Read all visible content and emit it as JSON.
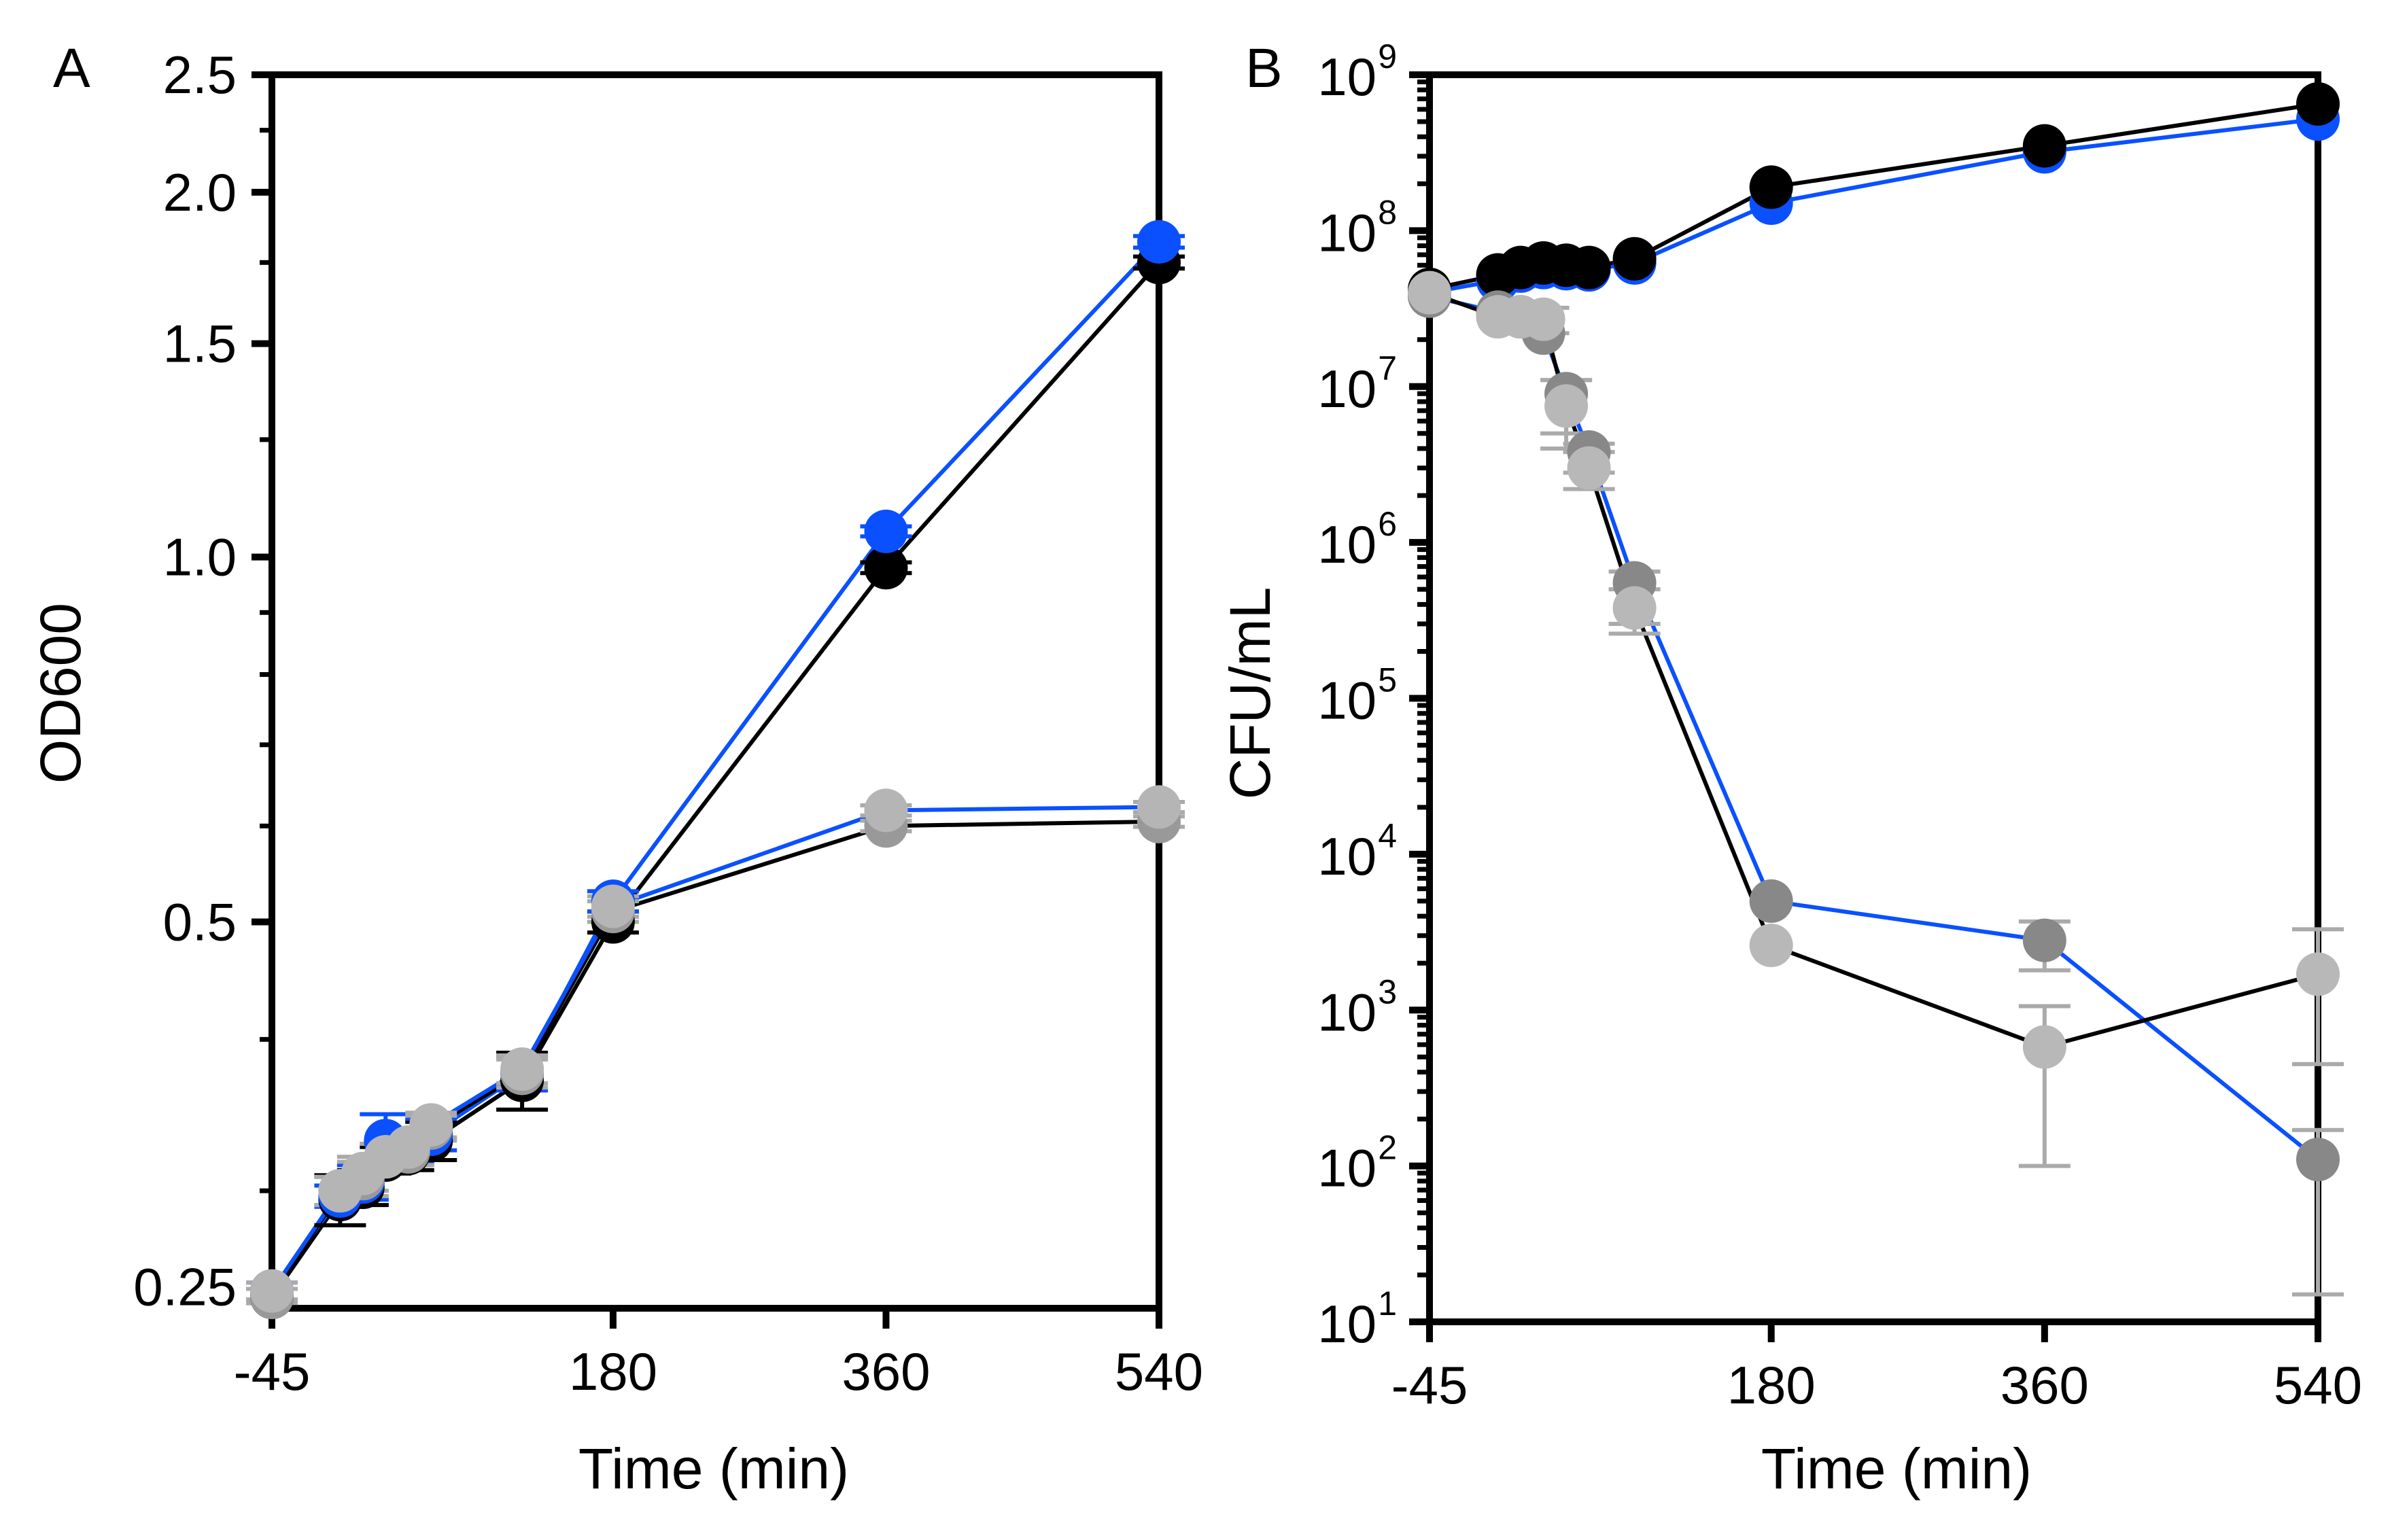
{
  "chart_data": [
    {
      "panel": "A",
      "type": "line",
      "xlabel": "Time (min)",
      "ylabel": "OD600",
      "xlim": [
        -45,
        540
      ],
      "ylim": [
        0.24,
        2.5
      ],
      "yscale": "log",
      "x_ticks": [
        -45,
        180,
        360,
        540
      ],
      "y_ticks": [
        {
          "value": 0.25,
          "label": "0.25"
        },
        {
          "value": 0.5,
          "label": "0.5"
        },
        {
          "value": 1.0,
          "label": "1.0"
        },
        {
          "value": 1.5,
          "label": "1.5"
        },
        {
          "value": 2.0,
          "label": "2.0"
        },
        {
          "value": 2.5,
          "label": "2.5"
        }
      ],
      "y_minor_ticks": [
        0.3,
        0.4,
        0.6,
        0.7,
        0.8,
        0.9,
        1.25,
        1.75,
        2.25
      ],
      "grid": false,
      "series": [
        {
          "color": "#000000",
          "line": "#000000",
          "x": [
            -45,
            0,
            15,
            30,
            45,
            60,
            120,
            180,
            360,
            540
          ],
          "y": [
            0.245,
            0.295,
            0.302,
            0.318,
            0.322,
            0.33,
            0.37,
            0.5,
            0.98,
            1.75
          ],
          "err": [
            0.004,
            0.014,
            0.01,
            0.008,
            0.01,
            0.012,
            0.02,
            0.01,
            0.01,
            0.02
          ]
        },
        {
          "color": "#0a50ff",
          "line": "#0a50ff",
          "x": [
            -45,
            0,
            15,
            30,
            45,
            60,
            120,
            180,
            360,
            540
          ],
          "y": [
            0.248,
            0.297,
            0.305,
            0.33,
            0.325,
            0.334,
            0.375,
            0.52,
            1.05,
            1.82
          ],
          "err": [
            0.004,
            0.006,
            0.01,
            0.017,
            0.008,
            0.01,
            0.012,
            0.01,
            0.01,
            0.02
          ]
        },
        {
          "color": "#999999",
          "line": "#000000",
          "x": [
            -45,
            0,
            15,
            30,
            45,
            60,
            120,
            180,
            360,
            540
          ],
          "y": [
            0.245,
            0.3,
            0.307,
            0.32,
            0.323,
            0.338,
            0.375,
            0.51,
            0.6,
            0.605
          ],
          "err": [
            0.004,
            0.008,
            0.01,
            0.008,
            0.008,
            0.008,
            0.01,
            0.01,
            0.006,
            0.006
          ]
        },
        {
          "color": "#b5b5b5",
          "line": "#0a50ff",
          "x": [
            -45,
            0,
            15,
            30,
            45,
            60,
            120,
            180,
            360,
            540
          ],
          "y": [
            0.248,
            0.3,
            0.31,
            0.32,
            0.326,
            0.34,
            0.378,
            0.515,
            0.618,
            0.622
          ],
          "err": [
            0.004,
            0.008,
            0.01,
            0.008,
            0.008,
            0.008,
            0.01,
            0.01,
            0.006,
            0.006
          ]
        }
      ]
    },
    {
      "panel": "B",
      "type": "line",
      "xlabel": "Time (min)",
      "ylabel": "CFU/mL",
      "xlim": [
        -45,
        540
      ],
      "ylim": [
        10,
        1000000000
      ],
      "yscale": "log",
      "x_ticks": [
        -45,
        180,
        360,
        540
      ],
      "y_ticks": [
        {
          "value": 10,
          "base": "10",
          "exp": "1"
        },
        {
          "value": 100,
          "base": "10",
          "exp": "2"
        },
        {
          "value": 1000,
          "base": "10",
          "exp": "3"
        },
        {
          "value": 10000,
          "base": "10",
          "exp": "4"
        },
        {
          "value": 100000,
          "base": "10",
          "exp": "5"
        },
        {
          "value": 1000000,
          "base": "10",
          "exp": "6"
        },
        {
          "value": 10000000,
          "base": "10",
          "exp": "7"
        },
        {
          "value": 100000000,
          "base": "10",
          "exp": "8"
        },
        {
          "value": 1000000000,
          "base": "10",
          "exp": "9"
        }
      ],
      "grid": false,
      "series": [
        {
          "color": "#0a50ff",
          "line": "#0a50ff",
          "x": [
            -45,
            0,
            15,
            30,
            45,
            60,
            90,
            180,
            360,
            540
          ],
          "y": [
            40000000,
            48000000,
            55000000,
            58000000,
            57000000,
            56000000,
            62000000,
            150000000,
            320000000,
            520000000
          ],
          "err": []
        },
        {
          "color": "#000000",
          "line": "#000000",
          "x": [
            -45,
            0,
            15,
            30,
            45,
            60,
            90,
            180,
            360,
            540
          ],
          "y": [
            42000000,
            52000000,
            58000000,
            62000000,
            60000000,
            58000000,
            66000000,
            190000000,
            350000000,
            650000000
          ],
          "err": []
        },
        {
          "color": "#888888",
          "line": "#0a50ff",
          "x": [
            -45,
            0,
            15,
            30,
            45,
            60,
            90,
            180,
            360,
            540
          ],
          "y": [
            38000000,
            30000000,
            28000000,
            22000000,
            9000000,
            3800000,
            550000,
            5000,
            2800,
            110
          ],
          "err_lo": [
            0,
            0,
            0,
            0,
            4000000,
            1000000,
            250000,
            0,
            1000,
            95
          ],
          "err_hi": [
            0,
            0,
            0,
            0,
            2000000,
            500000,
            100000,
            0,
            900,
            60
          ]
        },
        {
          "color": "#b8b8b8",
          "line": "#000000",
          "x": [
            -45,
            0,
            15,
            30,
            45,
            60,
            90,
            180,
            360,
            540
          ],
          "y": [
            40000000,
            28000000,
            28000000,
            27000000,
            7500000,
            3000000,
            380000,
            2600,
            580,
            1700
          ],
          "err_lo": [
            0,
            0,
            0,
            5000000,
            3500000,
            800000,
            120000,
            0,
            480,
            1250
          ],
          "err_hi": [
            0,
            0,
            0,
            5000000,
            3500000,
            800000,
            120000,
            0,
            480,
            1600
          ]
        }
      ]
    }
  ]
}
